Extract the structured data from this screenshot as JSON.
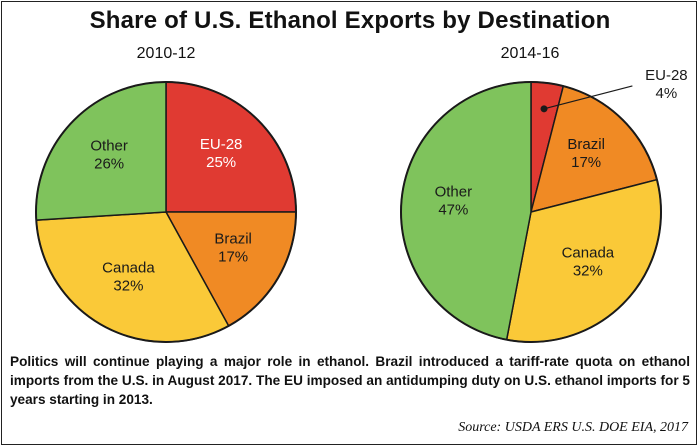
{
  "title": "Share of U.S. Ethanol Exports by Destination",
  "chart_data": [
    {
      "type": "pie",
      "subtitle": "2010-12",
      "slices": [
        {
          "label": "EU-28",
          "value": 25,
          "value_label": "25%",
          "color": "#e03a32"
        },
        {
          "label": "Brazil",
          "value": 17,
          "value_label": "17%",
          "color": "#f08a24"
        },
        {
          "label": "Canada",
          "value": 32,
          "value_label": "32%",
          "color": "#fac938"
        },
        {
          "label": "Other",
          "value": 26,
          "value_label": "26%",
          "color": "#7fc35c"
        }
      ]
    },
    {
      "type": "pie",
      "subtitle": "2014-16",
      "slices": [
        {
          "label": "EU-28",
          "value": 4,
          "value_label": "4%",
          "color": "#e03a32"
        },
        {
          "label": "Brazil",
          "value": 17,
          "value_label": "17%",
          "color": "#f08a24"
        },
        {
          "label": "Canada",
          "value": 32,
          "value_label": "32%",
          "color": "#fac938"
        },
        {
          "label": "Other",
          "value": 47,
          "value_label": "47%",
          "color": "#7fc35c"
        }
      ]
    }
  ],
  "note": "Politics will continue playing a major role in ethanol. Brazil introduced a tariff-rate quota on ethanol imports from the U.S. in August 2017. The EU imposed an antidumping duty on U.S. ethanol imports for 5 years starting in 2013.",
  "source": "Source: USDA ERS U.S. DOE EIA, 2017"
}
